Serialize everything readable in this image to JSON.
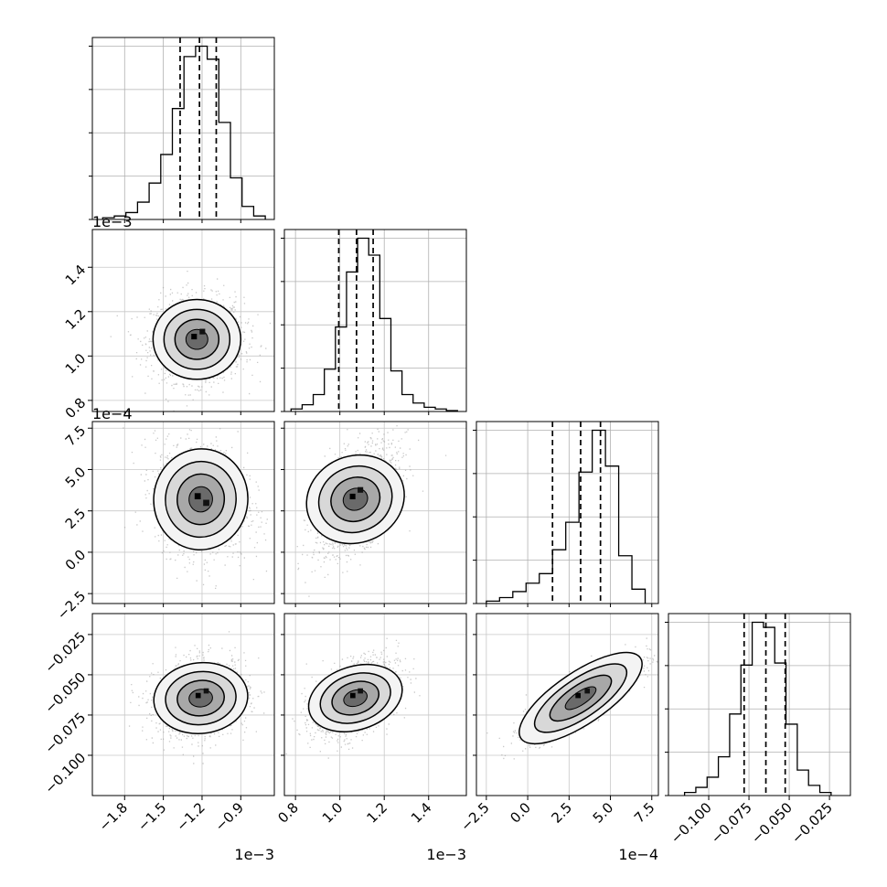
{
  "chart_data": {
    "type": "corner",
    "parameters": [
      {
        "xlim": [
          -0.00205,
          -0.00064
        ],
        "ticks": [
          -0.0018,
          -0.0015,
          -0.0012,
          -0.0009
        ],
        "tick_labels": [
          "−1.8",
          "−1.5",
          "−1.2",
          "−0.9"
        ],
        "offset": "1e−3",
        "quantiles": [
          -0.00137,
          -0.00122,
          -0.00109
        ]
      },
      {
        "xlim": [
          0.00075,
          0.00157
        ],
        "ticks": [
          0.0008,
          0.001,
          0.0012,
          0.0014
        ],
        "tick_labels": [
          "0.8",
          "1.0",
          "1.2",
          "1.4"
        ],
        "offset": "1e−3",
        "quantiles": [
          0.000995,
          0.001075,
          0.00115
        ]
      },
      {
        "xlim": [
          -0.00031,
          0.00079
        ],
        "ticks": [
          -0.00025,
          0.0,
          0.00025,
          0.0005,
          0.00075
        ],
        "tick_labels": [
          "−2.5",
          "0.0",
          "2.5",
          "5.0",
          "7.5"
        ],
        "offset": "1e−4",
        "quantiles": [
          0.00015,
          0.00032,
          0.00044
        ]
      },
      {
        "xlim": [
          -0.125,
          -0.012
        ],
        "ticks": [
          -0.1,
          -0.075,
          -0.05,
          -0.025
        ],
        "tick_labels": [
          "−0.100",
          "−0.075",
          "−0.050",
          "−0.025"
        ],
        "offset": "",
        "quantiles": [
          -0.078,
          -0.0645,
          -0.0525
        ]
      }
    ],
    "histograms": [
      {
        "bins": [
          -0.00197,
          -0.00188,
          -0.00179,
          -0.0017,
          -0.00161,
          -0.00152,
          -0.00143,
          -0.00134,
          -0.00125,
          -0.00116,
          -0.00107,
          -0.00098,
          -0.00089,
          -0.0008,
          -0.00071
        ],
        "counts": [
          2,
          4,
          8,
          20,
          42,
          75,
          128,
          188,
          200,
          185,
          112,
          48,
          15,
          4
        ]
      },
      {
        "bins": [
          0.00078,
          0.00083,
          0.00088,
          0.00093,
          0.00098,
          0.00103,
          0.00108,
          0.00113,
          0.00118,
          0.00123,
          0.00128,
          0.00133,
          0.00138,
          0.00143,
          0.00148,
          0.00153
        ],
        "counts": [
          3,
          8,
          20,
          50,
          100,
          165,
          205,
          185,
          110,
          48,
          20,
          10,
          5,
          3,
          1
        ]
      },
      {
        "bins": [
          -0.00025,
          -0.00017,
          -9e-05,
          -1e-05,
          7e-05,
          0.00015,
          0.00023,
          0.00031,
          0.00039,
          0.00047,
          0.00055,
          0.00063,
          0.00071
        ],
        "counts": [
          2,
          5,
          10,
          17,
          25,
          45,
          68,
          110,
          145,
          115,
          40,
          12
        ]
      },
      {
        "bins": [
          -0.115,
          -0.108,
          -0.101,
          -0.094,
          -0.087,
          -0.08,
          -0.073,
          -0.066,
          -0.059,
          -0.052,
          -0.045,
          -0.038,
          -0.031,
          -0.024
        ],
        "counts": [
          3,
          8,
          18,
          38,
          80,
          128,
          170,
          165,
          130,
          70,
          25,
          10,
          3
        ]
      }
    ],
    "pairs": [
      {
        "row": 1,
        "col": 0,
        "mean": [
          -0.00124,
          0.001075
        ],
        "sd": [
          0.00017,
          9e-05
        ],
        "corr": 0.0
      },
      {
        "row": 2,
        "col": 0,
        "mean": [
          -0.00121,
          0.00032
        ],
        "sd": [
          0.00017,
          0.00016
        ],
        "corr": -0.15
      },
      {
        "row": 2,
        "col": 1,
        "mean": [
          0.00107,
          0.00032
        ],
        "sd": [
          9e-05,
          0.00016
        ],
        "corr": 0.55
      },
      {
        "row": 3,
        "col": 0,
        "mean": [
          -0.00121,
          -0.0645
        ],
        "sd": [
          0.00017,
          0.0115
        ],
        "corr": 0.15
      },
      {
        "row": 3,
        "col": 1,
        "mean": [
          0.00107,
          -0.0645
        ],
        "sd": [
          9e-05,
          0.0115
        ],
        "corr": 0.45
      },
      {
        "row": 3,
        "col": 2,
        "mean": [
          0.00032,
          -0.0645
        ],
        "sd": [
          0.00016,
          0.0115
        ],
        "corr": 0.85
      }
    ],
    "grid": true
  }
}
